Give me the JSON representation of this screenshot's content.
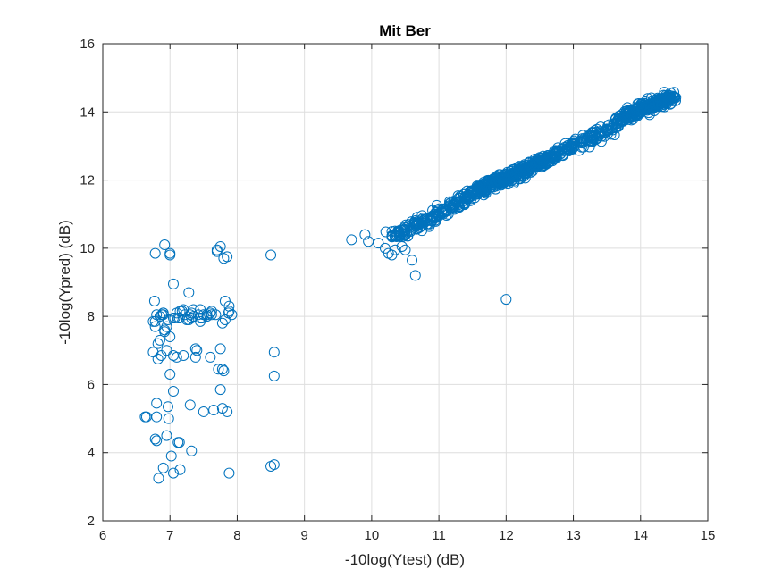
{
  "chart_data": {
    "type": "scatter",
    "title": "Mit Ber",
    "xlabel": "-10log(Ytest) (dB)",
    "ylabel": "-10log(Ypred) (dB)",
    "xlim": [
      6,
      15
    ],
    "ylim": [
      2,
      16
    ],
    "xticks": [
      6,
      7,
      8,
      9,
      10,
      11,
      12,
      13,
      14,
      15
    ],
    "yticks": [
      2,
      4,
      6,
      8,
      10,
      12,
      14,
      16
    ],
    "grid": true,
    "marker": "circle-open",
    "color": "#0072BD",
    "series": [
      {
        "x": [
          6.63,
          6.75,
          6.77,
          6.78,
          6.8,
          6.82,
          6.85,
          6.9,
          6.92,
          6.95,
          6.97,
          7.0,
          7.02,
          7.05,
          7.1,
          7.14,
          7.2,
          7.28,
          7.32,
          7.38,
          7.42,
          7.5,
          7.6,
          7.7,
          7.75,
          7.8,
          7.85,
          7.88,
          6.78,
          6.8,
          6.83,
          6.87,
          6.9,
          6.95,
          7.0,
          7.05,
          7.15,
          7.22,
          7.3,
          7.38,
          7.45,
          7.55,
          7.65,
          7.75,
          7.82,
          7.87,
          6.8,
          6.85,
          6.92,
          7.0,
          7.07,
          7.14,
          7.25,
          7.35,
          7.45,
          7.6,
          7.72,
          7.78,
          6.75,
          6.82,
          6.88,
          6.95,
          7.05,
          7.12,
          7.18,
          7.3,
          7.4,
          7.55,
          7.68,
          7.78,
          7.85,
          6.65,
          6.78,
          6.9,
          6.98,
          7.05,
          7.12,
          7.2,
          7.32,
          7.48,
          7.62,
          7.75,
          7.82,
          6.78,
          6.9,
          6.97,
          7.05,
          7.15,
          7.28,
          7.35,
          7.5,
          7.7,
          7.8,
          7.88,
          6.8,
          6.92,
          7.0,
          7.1,
          7.32,
          7.45,
          7.62,
          7.78,
          7.88,
          7.92,
          8.5,
          8.55,
          8.55,
          8.55,
          8.5,
          9.7,
          9.9,
          9.95,
          10.1,
          10.2,
          10.25,
          10.3,
          10.35,
          10.45,
          10.5,
          10.6,
          10.65,
          12.0
        ],
        "y": [
          5.05,
          6.95,
          8.45,
          9.85,
          5.05,
          6.75,
          7.3,
          8.05,
          10.1,
          7.0,
          5.35,
          9.85,
          3.9,
          6.85,
          8.1,
          4.3,
          6.85,
          8.7,
          4.05,
          6.8,
          8.05,
          5.2,
          6.8,
          9.9,
          10.05,
          9.7,
          5.2,
          8.3,
          7.7,
          5.45,
          3.25,
          6.85,
          8.1,
          4.5,
          7.4,
          3.4,
          8.15,
          8.05,
          5.4,
          7.05,
          7.95,
          8.0,
          5.25,
          5.85,
          7.9,
          8.1,
          8.05,
          8.0,
          7.55,
          6.3,
          7.95,
          7.95,
          7.9,
          8.0,
          7.85,
          8.1,
          6.45,
          7.8,
          7.85,
          7.2,
          8.05,
          7.7,
          8.95,
          4.3,
          8.15,
          8.05,
          7.0,
          8.05,
          8.05,
          5.3,
          9.75,
          5.05,
          4.4,
          3.55,
          5.0,
          5.8,
          7.95,
          8.2,
          8.1,
          7.95,
          8.15,
          7.05,
          8.45,
          7.85,
          8.1,
          7.9,
          7.95,
          3.5,
          7.9,
          8.2,
          8.05,
          9.95,
          6.4,
          8.15,
          4.35,
          7.6,
          9.8,
          6.8,
          7.95,
          8.2,
          8.05,
          6.45,
          3.4,
          8.05,
          9.8,
          6.95,
          6.25,
          3.65,
          3.6,
          10.25,
          10.4,
          10.2,
          10.15,
          10.0,
          9.85,
          9.8,
          9.95,
          10.05,
          9.95,
          9.65,
          9.2,
          8.5
        ]
      },
      {
        "name": "",
        "trend": "main cluster along y ≈ x from x 10.2 to 14.6",
        "x": [
          10.3,
          10.5,
          10.7,
          10.9,
          11.1,
          11.3,
          11.5,
          11.7,
          11.9,
          12.1,
          12.3,
          12.5,
          12.7,
          12.9,
          13.1,
          13.3,
          13.5,
          13.7,
          13.9,
          14.1,
          14.3,
          14.5
        ],
        "y": [
          10.35,
          10.5,
          10.7,
          10.9,
          11.1,
          11.35,
          11.6,
          11.85,
          12.0,
          12.1,
          12.3,
          12.5,
          12.7,
          12.9,
          13.1,
          13.25,
          13.5,
          13.75,
          14.0,
          14.15,
          14.3,
          14.45
        ]
      }
    ]
  }
}
